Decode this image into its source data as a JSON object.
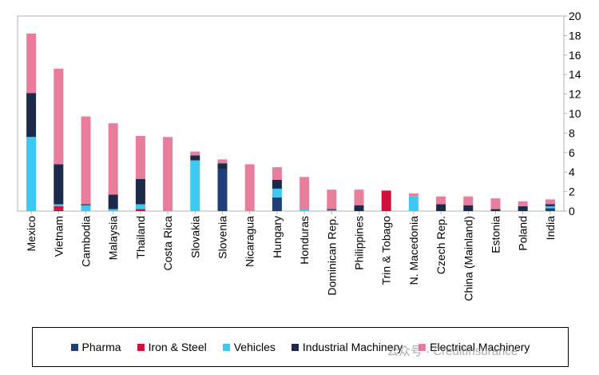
{
  "chart_data": {
    "type": "bar",
    "stacked": true,
    "title": "",
    "xlabel": "",
    "ylabel": "",
    "ylim": [
      0,
      20
    ],
    "yticks": [
      0,
      2,
      4,
      6,
      8,
      10,
      12,
      14,
      16,
      18,
      20
    ],
    "y_axis_side": "right",
    "grid": false,
    "legend_position": "bottom",
    "categories": [
      "Mexico",
      "Vietnam",
      "Cambodia",
      "Malaysia",
      "Thailand",
      "Costa Rica",
      "Slovakia",
      "Slovenia",
      "Nicaragua",
      "Hungary",
      "Honduras",
      "Dominican Rep.",
      "Philippines",
      "Trin & Tobago",
      "N. Macedonia",
      "Czech Rep.",
      "China (Mainland)",
      "Estonia",
      "Poland",
      "India"
    ],
    "series": [
      {
        "name": "Pharma",
        "color": "#1f3f7a",
        "values": [
          0,
          0.1,
          0,
          0,
          0,
          0,
          0,
          4.3,
          0,
          1.4,
          0,
          0,
          0,
          0,
          0,
          0,
          0,
          0,
          0,
          0.3
        ]
      },
      {
        "name": "Iron & Steel",
        "color": "#d0103a",
        "values": [
          0,
          0.4,
          0,
          0,
          0.2,
          0,
          0,
          0,
          0,
          0,
          0,
          0,
          0,
          2.1,
          0,
          0,
          0,
          0,
          0,
          0
        ]
      },
      {
        "name": "Vehicles",
        "color": "#3cc8f0",
        "values": [
          7.6,
          0.2,
          0.6,
          0.2,
          0.5,
          0,
          5.2,
          0,
          0,
          0.9,
          0.2,
          0.1,
          0,
          0,
          1.5,
          0,
          0,
          0,
          0,
          0.2
        ]
      },
      {
        "name": "Industrial Machinery",
        "color": "#1b2a4a",
        "values": [
          4.5,
          4.1,
          0.1,
          1.5,
          2.6,
          0,
          0.5,
          0.6,
          0,
          0.9,
          0,
          0.1,
          0.6,
          0,
          0,
          0.7,
          0.6,
          0.2,
          0.5,
          0.2
        ]
      },
      {
        "name": "Electrical Machinery",
        "color": "#e97d9c",
        "values": [
          6.1,
          9.8,
          9.0,
          7.3,
          4.4,
          7.6,
          0.4,
          0.4,
          4.8,
          1.3,
          3.3,
          2.0,
          1.6,
          0,
          0.3,
          0.8,
          0.9,
          1.1,
          0.5,
          0.5
        ]
      }
    ]
  },
  "watermark": {
    "text": "公众号 · CreditInsurance"
  }
}
